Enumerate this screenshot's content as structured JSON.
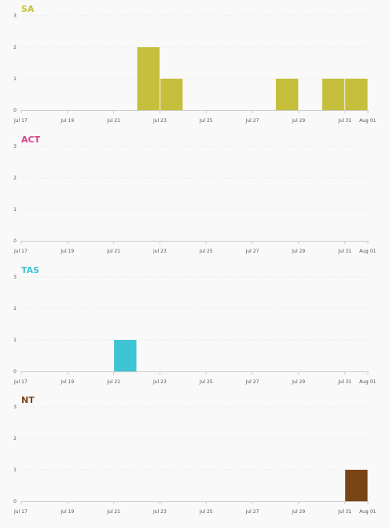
{
  "chart_data": [
    {
      "type": "bar",
      "title": "SA",
      "color": "#c6bf3d",
      "x": [
        "Jul 17",
        "Jul 18",
        "Jul 19",
        "Jul 20",
        "Jul 21",
        "Jul 22",
        "Jul 23",
        "Jul 24",
        "Jul 25",
        "Jul 26",
        "Jul 27",
        "Jul 28",
        "Jul 29",
        "Jul 30",
        "Jul 31",
        "Aug 01"
      ],
      "values": [
        0,
        0,
        0,
        0,
        0,
        2,
        1,
        0,
        0,
        0,
        0,
        1,
        0,
        1,
        1,
        0
      ],
      "xticks": [
        "Jul 17",
        "Jul 19",
        "Jul 21",
        "Jul 23",
        "Jul 25",
        "Jul 27",
        "Jul 29",
        "Jul 31",
        "Aug 01"
      ],
      "yticks": [
        "0",
        "1",
        "2",
        "3"
      ],
      "ylim": [
        0,
        3
      ],
      "grid": true
    },
    {
      "type": "bar",
      "title": "ACT",
      "color": "#d4458a",
      "x": [
        "Jul 17",
        "Jul 18",
        "Jul 19",
        "Jul 20",
        "Jul 21",
        "Jul 22",
        "Jul 23",
        "Jul 24",
        "Jul 25",
        "Jul 26",
        "Jul 27",
        "Jul 28",
        "Jul 29",
        "Jul 30",
        "Jul 31",
        "Aug 01"
      ],
      "values": [
        0,
        0,
        0,
        0,
        0,
        0,
        0,
        0,
        0,
        0,
        0,
        0,
        0,
        0,
        0,
        0
      ],
      "xticks": [
        "Jul 17",
        "Jul 19",
        "Jul 21",
        "Jul 23",
        "Jul 25",
        "Jul 27",
        "Jul 29",
        "Jul 31",
        "Aug 01"
      ],
      "yticks": [
        "0",
        "1",
        "2",
        "3"
      ],
      "ylim": [
        0,
        3
      ],
      "grid": true
    },
    {
      "type": "bar",
      "title": "TAS",
      "color": "#3fc4d4",
      "x": [
        "Jul 17",
        "Jul 18",
        "Jul 19",
        "Jul 20",
        "Jul 21",
        "Jul 22",
        "Jul 23",
        "Jul 24",
        "Jul 25",
        "Jul 26",
        "Jul 27",
        "Jul 28",
        "Jul 29",
        "Jul 30",
        "Jul 31",
        "Aug 01"
      ],
      "values": [
        0,
        0,
        0,
        0,
        1,
        0,
        0,
        0,
        0,
        0,
        0,
        0,
        0,
        0,
        0,
        0
      ],
      "xticks": [
        "Jul 17",
        "Jul 19",
        "Jul 21",
        "Jul 23",
        "Jul 25",
        "Jul 27",
        "Jul 29",
        "Jul 31",
        "Aug 01"
      ],
      "yticks": [
        "0",
        "1",
        "2",
        "3"
      ],
      "ylim": [
        0,
        3
      ],
      "grid": true
    },
    {
      "type": "bar",
      "title": "NT",
      "color": "#7a4515",
      "x": [
        "Jul 17",
        "Jul 18",
        "Jul 19",
        "Jul 20",
        "Jul 21",
        "Jul 22",
        "Jul 23",
        "Jul 24",
        "Jul 25",
        "Jul 26",
        "Jul 27",
        "Jul 28",
        "Jul 29",
        "Jul 30",
        "Jul 31",
        "Aug 01"
      ],
      "values": [
        0,
        0,
        0,
        0,
        0,
        0,
        0,
        0,
        0,
        0,
        0,
        0,
        0,
        0,
        1,
        0
      ],
      "xticks": [
        "Jul 17",
        "Jul 19",
        "Jul 21",
        "Jul 23",
        "Jul 25",
        "Jul 27",
        "Jul 29",
        "Jul 31",
        "Aug 01"
      ],
      "yticks": [
        "0",
        "1",
        "2",
        "3"
      ],
      "ylim": [
        0,
        3
      ],
      "grid": true
    }
  ]
}
